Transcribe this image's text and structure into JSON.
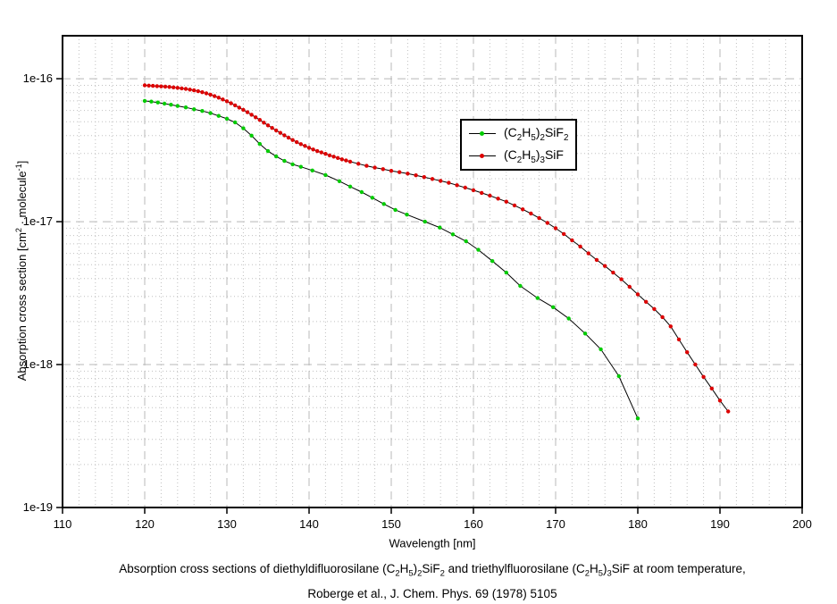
{
  "caption": {
    "line1": "Absorption cross sections of diethyldifluorosilane (C_{2}H_{5})_{2}SiF_{2} and triethylfluorosilane (C_{2}H_{5})_{3}SiF at room temperature,",
    "line2": "Roberge et al., J. Chem. Phys. 69 (1978) 5105"
  },
  "chart_data": {
    "type": "line",
    "title": "",
    "xlabel": "Wavelength [nm]",
    "ylabel": "Absorption cross section [cm^{2} · molecule^{-1}]",
    "xlim": [
      110,
      200
    ],
    "ylim": [
      1e-19,
      2e-16
    ],
    "yscale": "log",
    "grid": {
      "major_color": "#b8b8b8",
      "minor_color": "#c0c0c0",
      "major_on": true,
      "minor_on": true
    },
    "x_minor_step": 2,
    "xticks": [
      110,
      120,
      130,
      140,
      150,
      160,
      170,
      180,
      190,
      200
    ],
    "yticks": [
      {
        "v": 1e-16,
        "label": "1e-16"
      },
      {
        "v": 1e-17,
        "label": "1e-17"
      },
      {
        "v": 1e-18,
        "label": "1e-18"
      },
      {
        "v": 1e-19,
        "label": "1e-19"
      }
    ],
    "legend": {
      "position": "upper-middle",
      "border": true
    },
    "series": [
      {
        "id": "et2sif2",
        "name": "(C_{2}H_{5})_{2}SiF_{2}",
        "substance": "diethyldifluorosilane",
        "marker_color": "#00cc00",
        "line_color": "#000000",
        "points": [
          [
            120,
            7e-17
          ],
          [
            120.8,
            6.92e-17
          ],
          [
            121.6,
            6.82e-17
          ],
          [
            122.4,
            6.7e-17
          ],
          [
            123.2,
            6.58e-17
          ],
          [
            124,
            6.45e-17
          ],
          [
            125,
            6.3e-17
          ],
          [
            126,
            6.12e-17
          ],
          [
            127,
            5.95e-17
          ],
          [
            128,
            5.75e-17
          ],
          [
            129,
            5.5e-17
          ],
          [
            130,
            5.25e-17
          ],
          [
            131,
            4.95e-17
          ],
          [
            132,
            4.5e-17
          ],
          [
            133,
            4e-17
          ],
          [
            134,
            3.5e-17
          ],
          [
            135,
            3.12e-17
          ],
          [
            136,
            2.86e-17
          ],
          [
            137,
            2.66e-17
          ],
          [
            138,
            2.52e-17
          ],
          [
            139,
            2.42e-17
          ],
          [
            140.4,
            2.28e-17
          ],
          [
            142,
            2.12e-17
          ],
          [
            143.7,
            1.92e-17
          ],
          [
            145,
            1.76e-17
          ],
          [
            146.4,
            1.61e-17
          ],
          [
            147.7,
            1.47e-17
          ],
          [
            149.1,
            1.33e-17
          ],
          [
            150.5,
            1.21e-17
          ],
          [
            151.9,
            1.12e-17
          ],
          [
            154.1,
            1e-17
          ],
          [
            155.9,
            9.1e-18
          ],
          [
            157.5,
            8.15e-18
          ],
          [
            159.1,
            7.3e-18
          ],
          [
            160.6,
            6.35e-18
          ],
          [
            162.3,
            5.3e-18
          ],
          [
            164,
            4.4e-18
          ],
          [
            165.7,
            3.55e-18
          ],
          [
            167.8,
            2.92e-18
          ],
          [
            169.7,
            2.52e-18
          ],
          [
            171.6,
            2.1e-18
          ],
          [
            173.6,
            1.65e-18
          ],
          [
            175.5,
            1.28e-18
          ],
          [
            177.7,
            8.3e-19
          ],
          [
            180,
            4.2e-19
          ]
        ]
      },
      {
        "id": "et3sif",
        "name": "(C_{2}H_{5})_{3}SiF",
        "substance": "triethylfluorosilane",
        "marker_color": "#dd0000",
        "line_color": "#000000",
        "points": [
          [
            120,
            9e-17
          ],
          [
            120.5,
            8.96e-17
          ],
          [
            121,
            8.92e-17
          ],
          [
            121.5,
            8.88e-17
          ],
          [
            122,
            8.84e-17
          ],
          [
            122.5,
            8.8e-17
          ],
          [
            123,
            8.76e-17
          ],
          [
            123.5,
            8.7e-17
          ],
          [
            124,
            8.64e-17
          ],
          [
            124.5,
            8.57e-17
          ],
          [
            125,
            8.49e-17
          ],
          [
            125.5,
            8.4e-17
          ],
          [
            126,
            8.3e-17
          ],
          [
            126.5,
            8.18e-17
          ],
          [
            127,
            8.05e-17
          ],
          [
            127.5,
            7.9e-17
          ],
          [
            128,
            7.74e-17
          ],
          [
            128.5,
            7.56e-17
          ],
          [
            129,
            7.37e-17
          ],
          [
            129.5,
            7.17e-17
          ],
          [
            130,
            6.96e-17
          ],
          [
            130.5,
            6.74e-17
          ],
          [
            131,
            6.52e-17
          ],
          [
            131.5,
            6.29e-17
          ],
          [
            132,
            6.06e-17
          ],
          [
            132.5,
            5.83e-17
          ],
          [
            133,
            5.6e-17
          ],
          [
            133.5,
            5.37e-17
          ],
          [
            134,
            5.15e-17
          ],
          [
            134.5,
            4.93e-17
          ],
          [
            135,
            4.72e-17
          ],
          [
            135.5,
            4.53e-17
          ],
          [
            136,
            4.35e-17
          ],
          [
            136.5,
            4.18e-17
          ],
          [
            137,
            4.02e-17
          ],
          [
            137.5,
            3.87e-17
          ],
          [
            138,
            3.73e-17
          ],
          [
            138.5,
            3.6e-17
          ],
          [
            139,
            3.49e-17
          ],
          [
            139.5,
            3.39e-17
          ],
          [
            140,
            3.29e-17
          ],
          [
            140.5,
            3.2e-17
          ],
          [
            141,
            3.12e-17
          ],
          [
            141.5,
            3.05e-17
          ],
          [
            142,
            2.98e-17
          ],
          [
            142.5,
            2.91e-17
          ],
          [
            143,
            2.85e-17
          ],
          [
            143.5,
            2.79e-17
          ],
          [
            144,
            2.73e-17
          ],
          [
            144.5,
            2.68e-17
          ],
          [
            145,
            2.63e-17
          ],
          [
            146,
            2.54e-17
          ],
          [
            147,
            2.46e-17
          ],
          [
            148,
            2.39e-17
          ],
          [
            149,
            2.33e-17
          ],
          [
            150,
            2.27e-17
          ],
          [
            151,
            2.22e-17
          ],
          [
            152,
            2.17e-17
          ],
          [
            153,
            2.11e-17
          ],
          [
            154,
            2.05e-17
          ],
          [
            155,
            1.99e-17
          ],
          [
            156,
            1.93e-17
          ],
          [
            157,
            1.87e-17
          ],
          [
            158,
            1.8e-17
          ],
          [
            159,
            1.73e-17
          ],
          [
            160,
            1.66e-17
          ],
          [
            161,
            1.59e-17
          ],
          [
            162,
            1.52e-17
          ],
          [
            163,
            1.45e-17
          ],
          [
            164,
            1.38e-17
          ],
          [
            165,
            1.3e-17
          ],
          [
            166,
            1.22e-17
          ],
          [
            167,
            1.14e-17
          ],
          [
            168,
            1.06e-17
          ],
          [
            169,
            9.8e-18
          ],
          [
            170,
            9e-18
          ],
          [
            171,
            8.2e-18
          ],
          [
            172,
            7.4e-18
          ],
          [
            173,
            6.7e-18
          ],
          [
            174,
            6e-18
          ],
          [
            175,
            5.4e-18
          ],
          [
            176,
            4.9e-18
          ],
          [
            177,
            4.4e-18
          ],
          [
            178,
            3.95e-18
          ],
          [
            179,
            3.5e-18
          ],
          [
            180,
            3.1e-18
          ],
          [
            181,
            2.75e-18
          ],
          [
            182,
            2.45e-18
          ],
          [
            183,
            2.15e-18
          ],
          [
            184,
            1.85e-18
          ],
          [
            185,
            1.5e-18
          ],
          [
            186,
            1.22e-18
          ],
          [
            187,
            1e-18
          ],
          [
            188,
            8.2e-19
          ],
          [
            189,
            6.8e-19
          ],
          [
            190,
            5.6e-19
          ],
          [
            191,
            4.7e-19
          ]
        ]
      }
    ]
  }
}
